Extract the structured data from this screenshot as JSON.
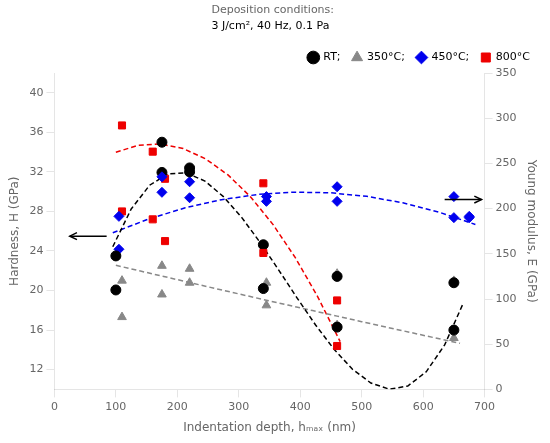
{
  "chart_data": {
    "type": "scatter",
    "xlabel": "Indentation depth, hₘₐₓ (nm)",
    "ylabel": "Hardness, H (GPa)",
    "y2label": "Young modulus, E (GPa)",
    "xlim": [
      0,
      700
    ],
    "ylim": [
      10,
      42
    ],
    "y2lim": [
      0,
      350
    ],
    "xticks": [
      0,
      100,
      200,
      300,
      400,
      500,
      600,
      700
    ],
    "yticks": [
      12,
      16,
      20,
      24,
      28,
      32,
      36,
      40
    ],
    "y2ticks": [
      0,
      50,
      100,
      150,
      200,
      250,
      300,
      350
    ],
    "grid": false,
    "legend": "upper right",
    "series": [
      {
        "type": "line",
        "line_style": "dashed",
        "color": "#000000",
        "axis": "y",
        "x": [
          95,
          125,
          155,
          185,
          215,
          245,
          275,
          305,
          335,
          365,
          395,
          425,
          455,
          485,
          515,
          545,
          575,
          605,
          635,
          665
        ],
        "values": [
          24.43,
          28.25,
          30.65,
          31.81,
          31.89,
          31.07,
          29.5,
          27.37,
          24.84,
          22.07,
          19.24,
          16.51,
          14.06,
          12.04,
          10.64,
          10.02,
          10.34,
          11.78,
          14.5,
          18.68
        ]
      },
      {
        "type": "line",
        "line_style": "dashed",
        "color": "#888888",
        "axis": "y",
        "x": [
          100,
          140,
          180,
          220,
          260,
          300,
          340,
          380,
          420,
          460,
          500,
          540,
          580,
          620,
          660
        ],
        "values": [
          22.55,
          21.97,
          21.39,
          20.81,
          20.23,
          19.66,
          19.09,
          18.53,
          17.97,
          17.41,
          16.85,
          16.3,
          15.75,
          15.2,
          14.66
        ]
      },
      {
        "type": "line",
        "line_style": "dashed",
        "color": "#EE0000",
        "axis": "y2",
        "x": [
          100,
          136.5,
          173,
          209.5,
          246,
          282.5,
          319,
          355.5,
          392,
          428.5,
          465
        ],
        "values": [
          262.31,
          270.05,
          271.42,
          266.41,
          255.02,
          237.26,
          213.12,
          182.6,
          145.71,
          102.44,
          52.8
        ]
      },
      {
        "type": "line",
        "line_style": "dashed",
        "color": "#0000EE",
        "axis": "y2",
        "x": [
          95,
          154,
          213,
          272,
          331,
          390,
          449,
          508,
          567,
          626,
          685
        ],
        "values": [
          173.22,
          188.67,
          200.9,
          209.89,
          215.66,
          218.19,
          217.5,
          213.57,
          206.42,
          196.03,
          182.42
        ]
      },
      {
        "name": "RT;",
        "type": "scatter",
        "marker": "circle",
        "color": "#000000",
        "axis": "y",
        "x": [
          100,
          175,
          220,
          340,
          460,
          650
        ],
        "values": [
          23.5,
          35.0,
          32.0,
          20.2,
          16.3,
          16.0
        ]
      },
      {
        "name": "350°C;",
        "type": "scatter",
        "marker": "triangle",
        "color": "#888888",
        "axis": "y",
        "x": [
          110,
          175,
          220,
          345,
          460,
          650
        ],
        "values": [
          21.0,
          22.5,
          22.2,
          18.5,
          16.5,
          15.2
        ]
      },
      {
        "name": "450°C;",
        "type": "scatter",
        "marker": "diamond",
        "color": "#0000EE",
        "axis": "y",
        "x": [
          105,
          175,
          220,
          345,
          460,
          650,
          675
        ],
        "values": [
          27.5,
          31.5,
          31.0,
          29.5,
          30.5,
          29.5,
          27.5
        ]
      },
      {
        "name": "800°C",
        "type": "scatter",
        "marker": "square",
        "color": "#EE0000",
        "axis": "y",
        "x": [
          110,
          160,
          180,
          340,
          460
        ],
        "values": [
          28.0,
          27.2,
          25.0,
          23.8,
          19.0
        ]
      },
      {
        "name": "RT;",
        "type": "scatter",
        "marker": "circle",
        "color": "#000000",
        "axis": "y2",
        "x": [
          100,
          175,
          220,
          340,
          460,
          650
        ],
        "values": [
          110,
          240,
          245,
          160,
          125,
          118
        ]
      },
      {
        "name": "350°C;",
        "type": "scatter",
        "marker": "triangle",
        "color": "#888888",
        "axis": "y2",
        "x": [
          110,
          175,
          220,
          345,
          460,
          650
        ],
        "values": [
          80,
          105,
          118,
          118,
          128,
          120
        ]
      },
      {
        "name": "450°C;",
        "type": "scatter",
        "marker": "diamond",
        "color": "#0000EE",
        "axis": "y2",
        "x": [
          105,
          175,
          220,
          345,
          460,
          650,
          675
        ],
        "values": [
          155,
          218,
          212,
          208,
          208,
          190,
          190
        ]
      },
      {
        "name": "800°C",
        "type": "scatter",
        "marker": "square",
        "color": "#EE0000",
        "axis": "y2",
        "x": [
          110,
          160,
          180,
          340,
          460
        ],
        "values": [
          292,
          263,
          233,
          228,
          48
        ]
      }
    ],
    "annotations": [
      {
        "text": "Deposition conditions:",
        "color": "#666666"
      },
      {
        "text": "3 J/cm², 40 Hz, 0.1 Pa",
        "color": "#000000"
      }
    ],
    "arrows": [
      {
        "x": [
          85,
          25
        ],
        "y": [
          25.5,
          25.5
        ],
        "color": "#000000"
      },
      {
        "x": [
          635,
          695
        ],
        "y": [
          29.2,
          29.2
        ],
        "color": "#000000"
      }
    ]
  }
}
